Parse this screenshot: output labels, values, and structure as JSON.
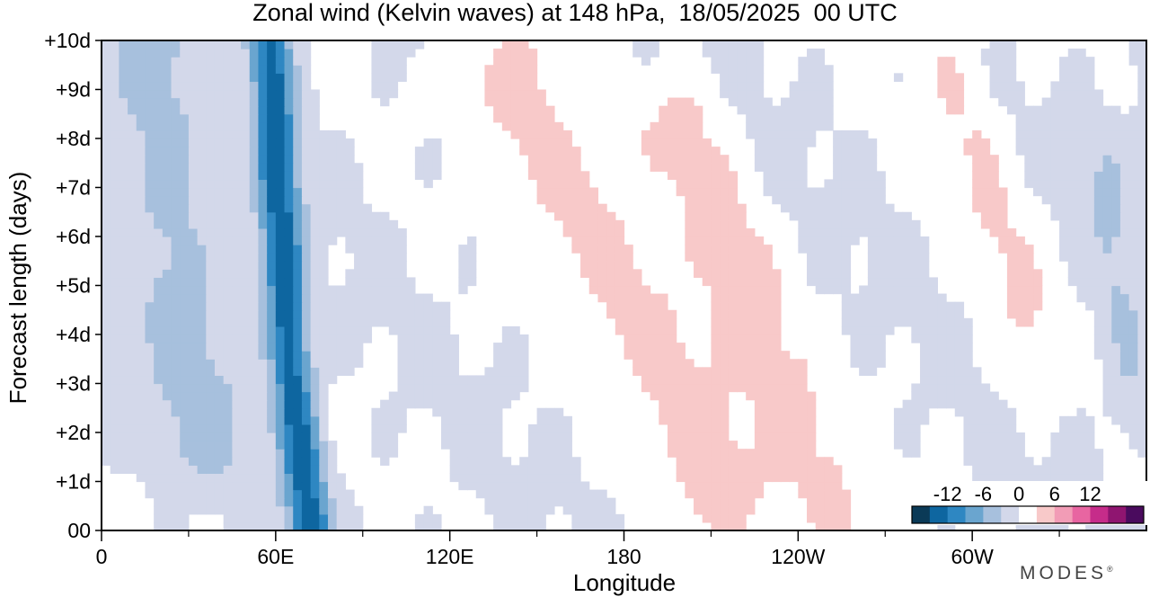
{
  "chart_data": {
    "type": "heatmap",
    "title": "Zonal wind (Kelvin waves) at 148 hPa,  18/05/2025  00 UTC",
    "xlabel": "Longitude",
    "ylabel": "Forecast length (days)",
    "x_ticks": [
      "0",
      "60E",
      "120E",
      "180",
      "120W",
      "60W"
    ],
    "x_tick_values": [
      0,
      60,
      120,
      180,
      240,
      300
    ],
    "x_minor_tick_values": [
      30,
      90,
      150,
      210,
      270,
      330
    ],
    "xlim": [
      0,
      360
    ],
    "y_ticks": [
      "00",
      "+1d",
      "+2d",
      "+3d",
      "+4d",
      "+5d",
      "+6d",
      "+7d",
      "+8d",
      "+9d",
      "+10d"
    ],
    "y_tick_values": [
      0,
      1,
      2,
      3,
      4,
      5,
      6,
      7,
      8,
      9,
      10
    ],
    "ylim": [
      0,
      10
    ],
    "colorbar": {
      "labels": [
        "-12",
        "-6",
        "0",
        "6",
        "12"
      ],
      "label_values": [
        -12,
        -6,
        0,
        6,
        12
      ],
      "levels": [
        -15,
        -12,
        -9,
        -6,
        -3,
        0,
        3,
        6,
        9,
        12,
        15
      ],
      "colors": [
        "#0b3a57",
        "#0e66a0",
        "#2e87c2",
        "#6aa5cf",
        "#a7c0dd",
        "#d3d8ea",
        "#ffffff",
        "#f8c9c9",
        "#f29cb6",
        "#e865a1",
        "#c62c8a",
        "#8f1570",
        "#4a0b5e"
      ]
    },
    "features": [
      {
        "sign": "negative",
        "peak": -14,
        "x": [
          58,
          60,
          62,
          64,
          68,
          72
        ],
        "y": [
          10,
          8,
          6,
          4,
          2,
          0
        ],
        "width_deg": 10
      },
      {
        "sign": "negative",
        "peak": -4,
        "x": [
          15,
          20,
          25,
          30,
          35
        ],
        "y": [
          10,
          8,
          6,
          4,
          2
        ],
        "width_deg": 25
      },
      {
        "sign": "positive",
        "peak": 5,
        "x": [
          140,
          160,
          180,
          200,
          215
        ],
        "y": [
          9,
          7,
          5,
          3,
          1
        ],
        "width_deg": 25
      },
      {
        "sign": "positive",
        "peak": 4,
        "x": [
          200,
          215,
          225,
          240,
          255
        ],
        "y": [
          8,
          6,
          4,
          2,
          0
        ],
        "width_deg": 22
      },
      {
        "sign": "positive",
        "peak": 3,
        "x": [
          290,
          300,
          310,
          320
        ],
        "y": [
          10,
          8,
          6,
          4
        ],
        "width_deg": 18
      },
      {
        "sign": "negative",
        "peak": -3,
        "x": [
          345,
          350,
          355
        ],
        "y": [
          7,
          5,
          3
        ],
        "width_deg": 12
      }
    ]
  },
  "brand": {
    "name": "MODES",
    "mark": "®"
  }
}
